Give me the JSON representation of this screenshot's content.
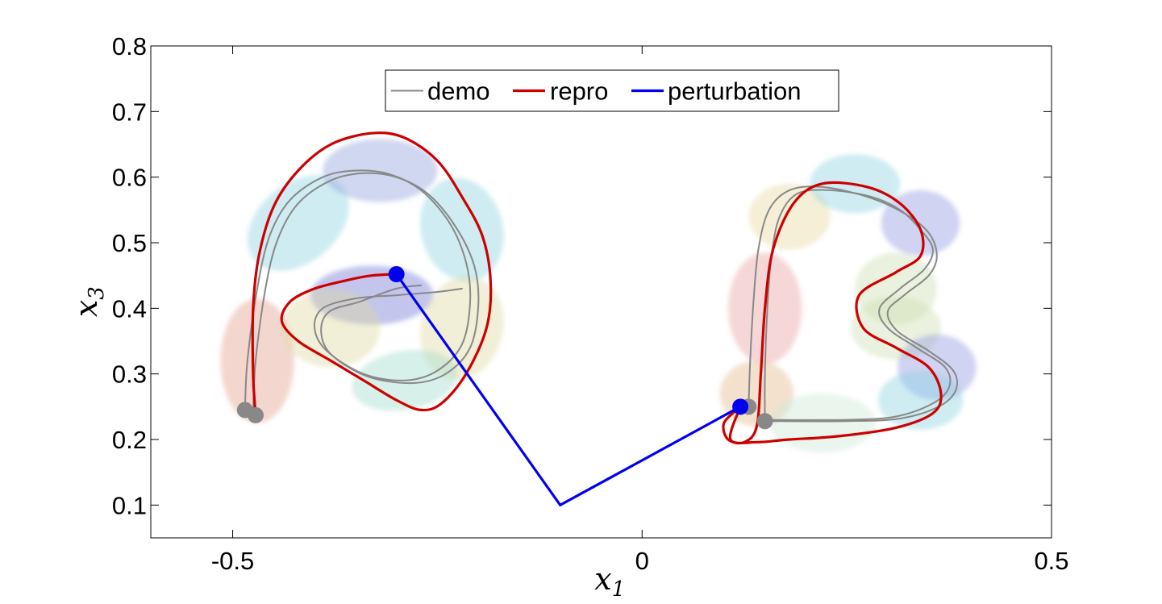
{
  "chart_data": {
    "type": "line",
    "title": "",
    "xlabel": "x",
    "xlabel_sub": "1",
    "ylabel": "x",
    "ylabel_sub": "3",
    "xlim": [
      -0.6,
      0.5
    ],
    "ylim": [
      0.05,
      0.8
    ],
    "xticks": [
      -0.5,
      0,
      0.5
    ],
    "xtick_labels": [
      "-0.5",
      "0",
      "0.5"
    ],
    "yticks": [
      0.1,
      0.2,
      0.3,
      0.4,
      0.5,
      0.6,
      0.7,
      0.8
    ],
    "ytick_labels": [
      "0.1",
      "0.2",
      "0.3",
      "0.4",
      "0.5",
      "0.6",
      "0.7",
      "0.8"
    ],
    "grid": false,
    "legend_position": "top-center",
    "legend": [
      {
        "label": "demo",
        "color": "#888888"
      },
      {
        "label": "repro",
        "color": "#cc0000"
      },
      {
        "label": "perturbation",
        "color": "#0000ee"
      }
    ],
    "gaussians": [
      {
        "cx": -0.47,
        "cy": 0.32,
        "rx": 0.045,
        "ry": 0.095,
        "angle": 0,
        "color": "#e3a08a"
      },
      {
        "cx": -0.42,
        "cy": 0.53,
        "rx": 0.07,
        "ry": 0.06,
        "angle": -40,
        "color": "#8ad1e0"
      },
      {
        "cx": -0.32,
        "cy": 0.61,
        "rx": 0.07,
        "ry": 0.048,
        "angle": 0,
        "color": "#8ea0dc"
      },
      {
        "cx": -0.22,
        "cy": 0.52,
        "rx": 0.05,
        "ry": 0.08,
        "angle": -15,
        "color": "#8ad1e0"
      },
      {
        "cx": -0.33,
        "cy": 0.42,
        "rx": 0.075,
        "ry": 0.045,
        "angle": 0,
        "color": "#6e75d4"
      },
      {
        "cx": -0.38,
        "cy": 0.37,
        "rx": 0.06,
        "ry": 0.06,
        "angle": 0,
        "color": "#dddaa0"
      },
      {
        "cx": -0.22,
        "cy": 0.37,
        "rx": 0.05,
        "ry": 0.08,
        "angle": 15,
        "color": "#dddaa0"
      },
      {
        "cx": -0.29,
        "cy": 0.29,
        "rx": 0.065,
        "ry": 0.045,
        "angle": -10,
        "color": "#a0dccc"
      },
      {
        "cx": 0.15,
        "cy": 0.4,
        "rx": 0.045,
        "ry": 0.085,
        "angle": 0,
        "color": "#eaa0a0"
      },
      {
        "cx": 0.14,
        "cy": 0.27,
        "rx": 0.045,
        "ry": 0.05,
        "angle": 0,
        "color": "#e3b88a"
      },
      {
        "cx": 0.18,
        "cy": 0.54,
        "rx": 0.05,
        "ry": 0.05,
        "angle": 0,
        "color": "#e8daa0"
      },
      {
        "cx": 0.26,
        "cy": 0.59,
        "rx": 0.055,
        "ry": 0.045,
        "angle": 0,
        "color": "#8ad1e0"
      },
      {
        "cx": 0.34,
        "cy": 0.53,
        "rx": 0.048,
        "ry": 0.05,
        "angle": 0,
        "color": "#8e95e0"
      },
      {
        "cx": 0.31,
        "cy": 0.43,
        "rx": 0.05,
        "ry": 0.055,
        "angle": 0,
        "color": "#cdddb0"
      },
      {
        "cx": 0.31,
        "cy": 0.37,
        "rx": 0.055,
        "ry": 0.048,
        "angle": 0,
        "color": "#cdddb0"
      },
      {
        "cx": 0.36,
        "cy": 0.31,
        "rx": 0.048,
        "ry": 0.05,
        "angle": 0,
        "color": "#8e95e0"
      },
      {
        "cx": 0.34,
        "cy": 0.26,
        "rx": 0.052,
        "ry": 0.045,
        "angle": 0,
        "color": "#8ad1e0"
      },
      {
        "cx": 0.22,
        "cy": 0.225,
        "rx": 0.065,
        "ry": 0.045,
        "angle": 0,
        "color": "#cde6d6"
      }
    ],
    "series": [
      {
        "name": "demo",
        "color": "#888888",
        "width": 2,
        "kind": "demo",
        "x": [
          -0.485,
          -0.482,
          -0.47,
          -0.455,
          -0.43,
          -0.39,
          -0.35,
          -0.31,
          -0.27,
          -0.235,
          -0.215,
          -0.21,
          -0.22,
          -0.25,
          -0.29,
          -0.34,
          -0.385,
          -0.4,
          -0.39,
          -0.35,
          -0.3,
          -0.25,
          -0.22
        ],
        "y": [
          0.245,
          0.32,
          0.43,
          0.51,
          0.565,
          0.6,
          0.61,
          0.605,
          0.58,
          0.53,
          0.47,
          0.41,
          0.345,
          0.305,
          0.29,
          0.3,
          0.335,
          0.37,
          0.4,
          0.415,
          0.42,
          0.425,
          0.43
        ]
      },
      {
        "name": "demo",
        "color": "#888888",
        "width": 2,
        "kind": "demo",
        "x": [
          -0.475,
          -0.472,
          -0.46,
          -0.445,
          -0.42,
          -0.38,
          -0.34,
          -0.3,
          -0.262,
          -0.228,
          -0.205,
          -0.2,
          -0.21,
          -0.24,
          -0.28,
          -0.335,
          -0.38,
          -0.392,
          -0.382,
          -0.345,
          -0.3,
          -0.27
        ],
        "y": [
          0.24,
          0.32,
          0.43,
          0.505,
          0.56,
          0.595,
          0.606,
          0.6,
          0.575,
          0.525,
          0.465,
          0.405,
          0.34,
          0.3,
          0.286,
          0.296,
          0.33,
          0.365,
          0.395,
          0.41,
          0.43,
          0.435
        ]
      },
      {
        "name": "demo",
        "color": "#888888",
        "width": 2,
        "kind": "demo",
        "x": [
          0.15,
          0.15,
          0.153,
          0.158,
          0.168,
          0.19,
          0.23,
          0.28,
          0.315,
          0.34,
          0.355,
          0.345,
          0.315,
          0.29,
          0.3,
          0.335,
          0.37,
          0.375,
          0.355,
          0.31,
          0.25,
          0.15
        ],
        "y": [
          0.23,
          0.3,
          0.4,
          0.48,
          0.54,
          0.575,
          0.58,
          0.57,
          0.55,
          0.52,
          0.49,
          0.46,
          0.43,
          0.4,
          0.37,
          0.34,
          0.31,
          0.28,
          0.255,
          0.235,
          0.23,
          0.23
        ]
      },
      {
        "name": "demo",
        "color": "#888888",
        "width": 2,
        "kind": "demo",
        "x": [
          0.13,
          0.132,
          0.136,
          0.142,
          0.155,
          0.18,
          0.22,
          0.275,
          0.32,
          0.35,
          0.36,
          0.35,
          0.32,
          0.3,
          0.312,
          0.35,
          0.38,
          0.383,
          0.362,
          0.315,
          0.25,
          0.15
        ],
        "y": [
          0.25,
          0.32,
          0.41,
          0.49,
          0.55,
          0.58,
          0.585,
          0.57,
          0.545,
          0.515,
          0.48,
          0.45,
          0.42,
          0.395,
          0.365,
          0.335,
          0.305,
          0.275,
          0.25,
          0.232,
          0.228,
          0.228
        ]
      },
      {
        "name": "repro",
        "color": "#cc0000",
        "width": 3.2,
        "kind": "repro",
        "x": [
          -0.472,
          -0.475,
          -0.475,
          -0.468,
          -0.45,
          -0.42,
          -0.38,
          -0.33,
          -0.29,
          -0.25,
          -0.22,
          -0.195,
          -0.185,
          -0.19,
          -0.215,
          -0.245,
          -0.27,
          -0.3,
          -0.34,
          -0.38,
          -0.42,
          -0.44,
          -0.43,
          -0.4,
          -0.36,
          -0.33,
          -0.3
        ],
        "y": [
          0.237,
          0.3,
          0.4,
          0.48,
          0.555,
          0.61,
          0.65,
          0.667,
          0.66,
          0.625,
          0.57,
          0.51,
          0.44,
          0.37,
          0.3,
          0.255,
          0.245,
          0.26,
          0.29,
          0.32,
          0.35,
          0.38,
          0.41,
          0.43,
          0.443,
          0.45,
          0.452
        ]
      },
      {
        "name": "repro",
        "color": "#cc0000",
        "width": 3.2,
        "kind": "repro",
        "x": [
          0.12,
          0.1,
          0.105,
          0.125,
          0.14,
          0.145,
          0.15,
          0.16,
          0.185,
          0.22,
          0.275,
          0.315,
          0.34,
          0.34,
          0.31,
          0.265,
          0.27,
          0.31,
          0.35,
          0.365,
          0.355,
          0.31,
          0.24,
          0.18,
          0.14,
          0.108,
          0.12
        ],
        "y": [
          0.25,
          0.225,
          0.2,
          0.196,
          0.22,
          0.3,
          0.4,
          0.49,
          0.56,
          0.59,
          0.585,
          0.56,
          0.52,
          0.48,
          0.455,
          0.42,
          0.37,
          0.34,
          0.31,
          0.27,
          0.24,
          0.218,
          0.205,
          0.2,
          0.196,
          0.2,
          0.25
        ]
      }
    ],
    "perturbation": {
      "x": [
        -0.3,
        -0.1,
        0.12
      ],
      "y": [
        0.452,
        0.1,
        0.25
      ]
    },
    "markers": [
      {
        "x": -0.485,
        "y": 0.245,
        "color": "#888888",
        "kind": "start"
      },
      {
        "x": -0.472,
        "y": 0.237,
        "color": "#888888",
        "kind": "start"
      },
      {
        "x": 0.15,
        "y": 0.228,
        "color": "#888888",
        "kind": "start"
      },
      {
        "x": 0.13,
        "y": 0.25,
        "color": "#888888",
        "kind": "start"
      },
      {
        "x": -0.3,
        "y": 0.452,
        "color": "#0000ee",
        "kind": "perturb"
      },
      {
        "x": 0.12,
        "y": 0.25,
        "color": "#0000ee",
        "kind": "perturb"
      }
    ]
  }
}
